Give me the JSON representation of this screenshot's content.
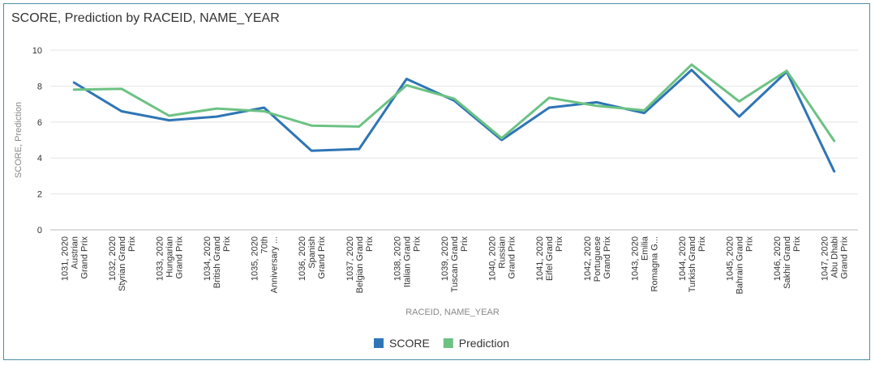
{
  "chart_data": {
    "type": "line",
    "title": "SCORE, Prediction by RACEID, NAME_YEAR",
    "xlabel": "RACEID, NAME_YEAR",
    "ylabel": "SCORE, Prediction",
    "ylim": [
      0,
      10
    ],
    "yticks": [
      "0",
      "2",
      "4",
      "6",
      "8",
      "10"
    ],
    "grid": true,
    "legend_position": "bottom",
    "categories": [
      [
        "1031, 2020",
        "Austrian",
        "Grand Prix"
      ],
      [
        "1032, 2020",
        "Styrian Grand",
        "Prix"
      ],
      [
        "1033, 2020",
        "Hungarian",
        "Grand Prix"
      ],
      [
        "1034, 2020",
        "British Grand",
        "Prix"
      ],
      [
        "1035, 2020",
        "70th",
        "Anniversary ..."
      ],
      [
        "1036, 2020",
        "Spanish",
        "Grand Prix"
      ],
      [
        "1037, 2020",
        "Belgian Grand",
        "Prix"
      ],
      [
        "1038, 2020",
        "Italian Grand",
        "Prix"
      ],
      [
        "1039, 2020",
        "Tuscan Grand",
        "Prix"
      ],
      [
        "1040, 2020",
        "Russian",
        "Grand Prix"
      ],
      [
        "1041, 2020",
        "Eifel Grand",
        "Prix"
      ],
      [
        "1042, 2020",
        "Portuguese",
        "Grand Prix"
      ],
      [
        "1043, 2020",
        "Emilia",
        "Romagna G..."
      ],
      [
        "1044, 2020",
        "Turkish Grand",
        "Prix"
      ],
      [
        "1045, 2020",
        "Bahrain Grand",
        "Prix"
      ],
      [
        "1046, 2020",
        "Sakhir Grand",
        "Prix"
      ],
      [
        "1047, 2020",
        "Abu Dhabi",
        "Grand Prix"
      ]
    ],
    "series": [
      {
        "name": "SCORE",
        "color": "#2e75b6",
        "values": [
          8.2,
          6.6,
          6.1,
          6.3,
          6.8,
          4.4,
          4.5,
          8.4,
          7.2,
          5.0,
          6.8,
          7.1,
          6.5,
          8.9,
          6.3,
          8.8,
          3.25
        ]
      },
      {
        "name": "Prediction",
        "color": "#6cc283",
        "values": [
          7.8,
          7.85,
          6.35,
          6.75,
          6.6,
          5.8,
          5.75,
          8.05,
          7.3,
          5.1,
          7.35,
          6.9,
          6.65,
          9.2,
          7.15,
          8.85,
          4.95
        ]
      }
    ]
  }
}
